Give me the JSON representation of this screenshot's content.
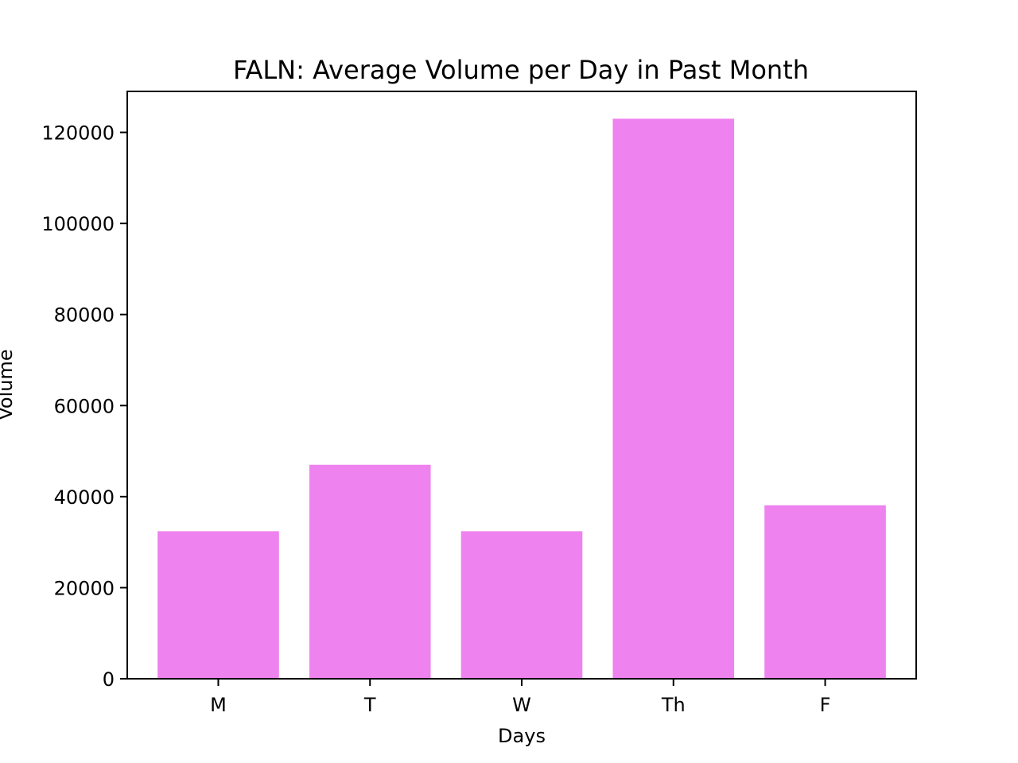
{
  "chart_data": {
    "type": "bar",
    "title": "FALN: Average Volume per Day in Past Month",
    "xlabel": "Days",
    "ylabel": "Volume",
    "categories": [
      "M",
      "T",
      "W",
      "Th",
      "F"
    ],
    "values": [
      32400,
      47000,
      32400,
      123000,
      38100
    ],
    "ylim": [
      0,
      129000
    ],
    "yticks": [
      0,
      20000,
      40000,
      60000,
      80000,
      100000,
      120000
    ],
    "bar_color": "#ee82ee",
    "grid": false,
    "legend": "none"
  }
}
